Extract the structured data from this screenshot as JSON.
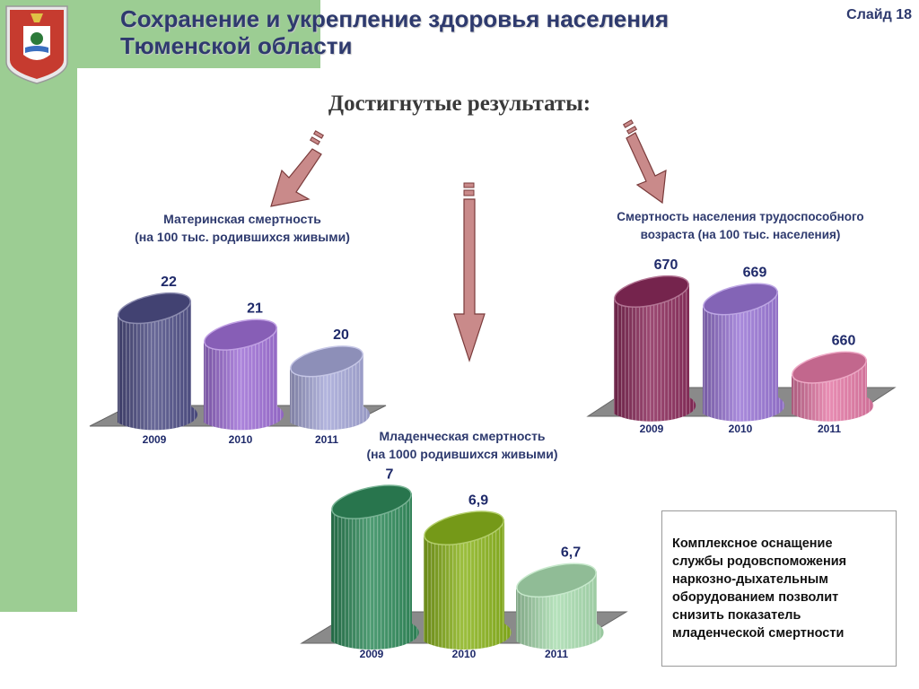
{
  "header": {
    "title_line1": "Сохранение и укрепление здоровья населения",
    "title_line2": "Тюменской области",
    "slide_label": "Слайд 18"
  },
  "subtitle": "Достигнутые результаты:",
  "note": "Комплексное оснащение службы родовспоможения наркозно-дыхательным оборудованием позволит снизить показатель младенческой смертности",
  "colors": {
    "title": "#2e3a6e",
    "left_panel": "#9ccd93",
    "arrow_fill": "#c98a8a",
    "arrow_stroke": "#7a3b3b"
  },
  "icons": [
    "emblem-icon",
    "arrow-down-icon"
  ],
  "chart_data": [
    {
      "type": "bar",
      "id": "maternal",
      "title_line1": "Материнская смертность",
      "title_line2": "(на 100 тыс. родившихся живыми)",
      "categories": [
        "2009",
        "2010",
        "2011"
      ],
      "values": [
        22,
        21,
        20
      ],
      "value_labels": [
        "22",
        "21",
        "20"
      ],
      "colors": [
        "#4e4e86",
        "#9f6fd6",
        "#a6a8d8"
      ],
      "ylim": [
        18,
        23
      ],
      "grid": false
    },
    {
      "type": "bar",
      "id": "working_age",
      "title_line1": "Смертность населения трудоспособного",
      "title_line2": "возраста (на 100 тыс. населения)",
      "categories": [
        "2009",
        "2010",
        "2011"
      ],
      "values": [
        670,
        669,
        660
      ],
      "value_labels": [
        "670",
        "669",
        "660"
      ],
      "colors": [
        "#8a2a5a",
        "#9a76d6",
        "#e479a6"
      ],
      "ylim": [
        655,
        672
      ],
      "grid": false
    },
    {
      "type": "bar",
      "id": "infant",
      "title_line1": "Младенческая смертность",
      "title_line2": "(на 1000 родившихся живыми)",
      "categories": [
        "2009",
        "2010",
        "2011"
      ],
      "values": [
        7,
        6.9,
        6.7
      ],
      "value_labels": [
        "7",
        "6,9",
        "6,7"
      ],
      "colors": [
        "#2f8a5a",
        "#8ab41c",
        "#a9ddb0"
      ],
      "ylim": [
        6.5,
        7.05
      ],
      "grid": false
    }
  ]
}
